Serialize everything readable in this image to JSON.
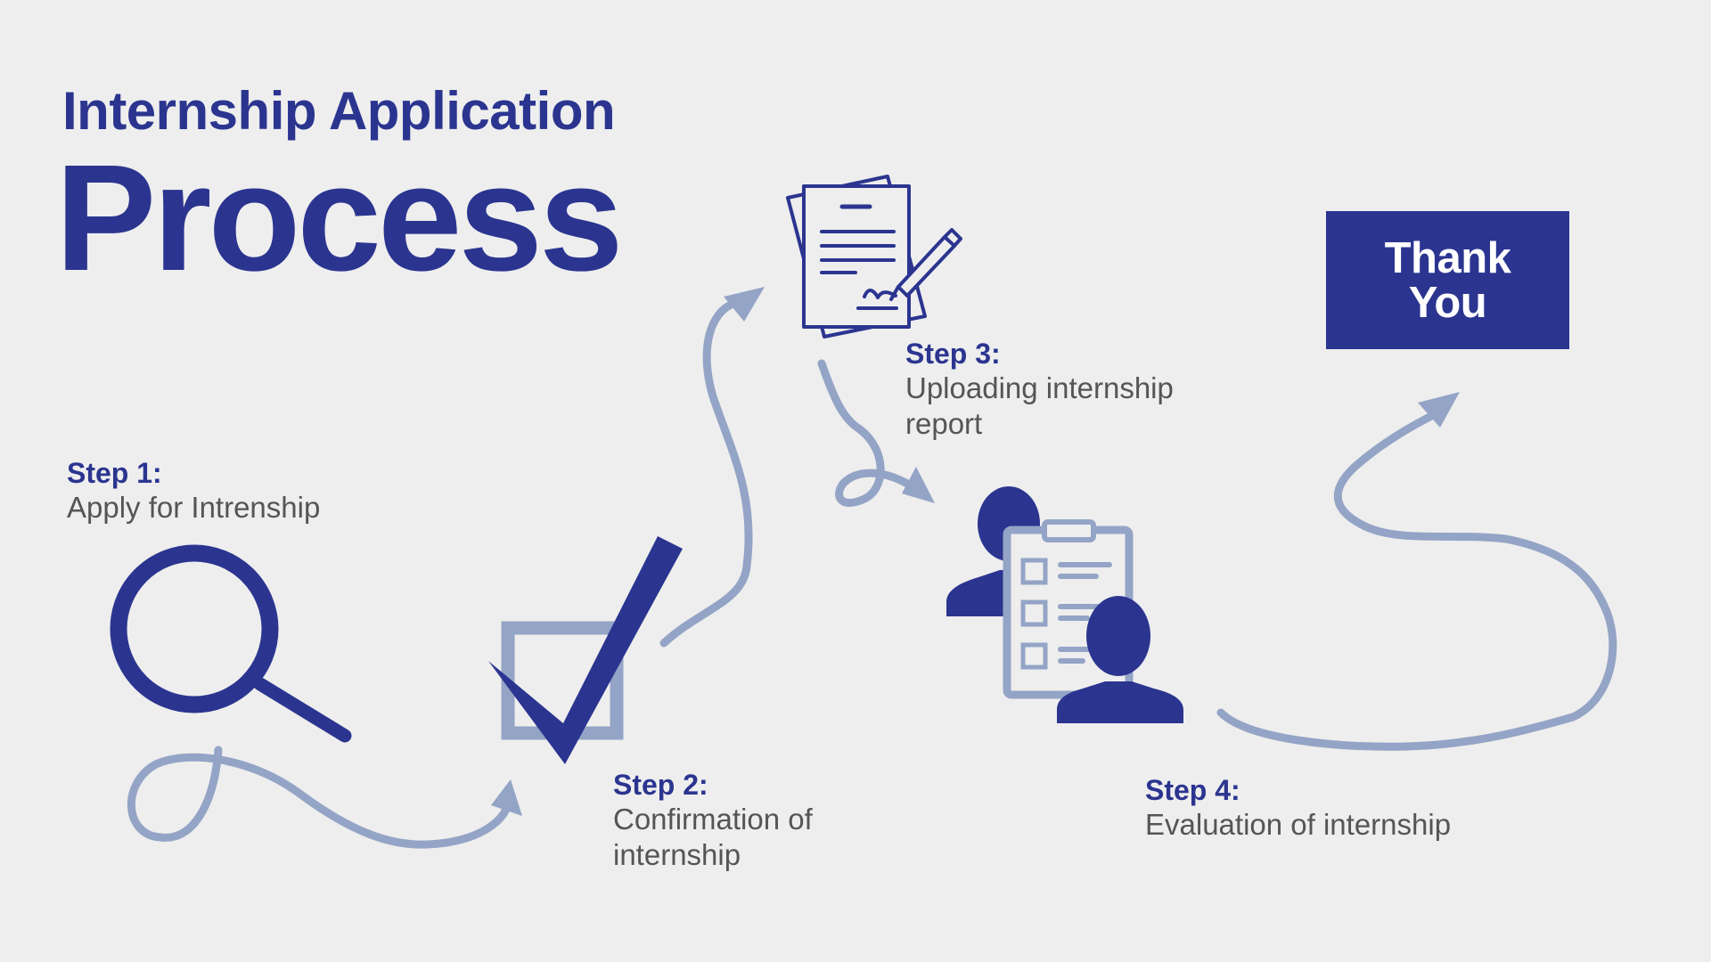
{
  "header": {
    "subtitle": "Internship Application",
    "title": "Process"
  },
  "steps": [
    {
      "label": "Step 1:",
      "description": "Apply for Intrenship",
      "icon": "magnifier-icon"
    },
    {
      "label": "Step 2:",
      "description": "Confirmation of internship",
      "icon": "checkbox-checkmark-icon"
    },
    {
      "label": "Step 3:",
      "description": "Uploading internship report",
      "icon": "signed-document-icon"
    },
    {
      "label": "Step 4:",
      "description": "Evaluation of internship",
      "icon": "evaluation-clipboard-people-icon"
    }
  ],
  "end_box": {
    "label": "Thank You"
  },
  "colors": {
    "background": "#eeeeee",
    "primary": "#2b3590",
    "arrow": "#94a4c6",
    "text_gray": "#555555"
  }
}
